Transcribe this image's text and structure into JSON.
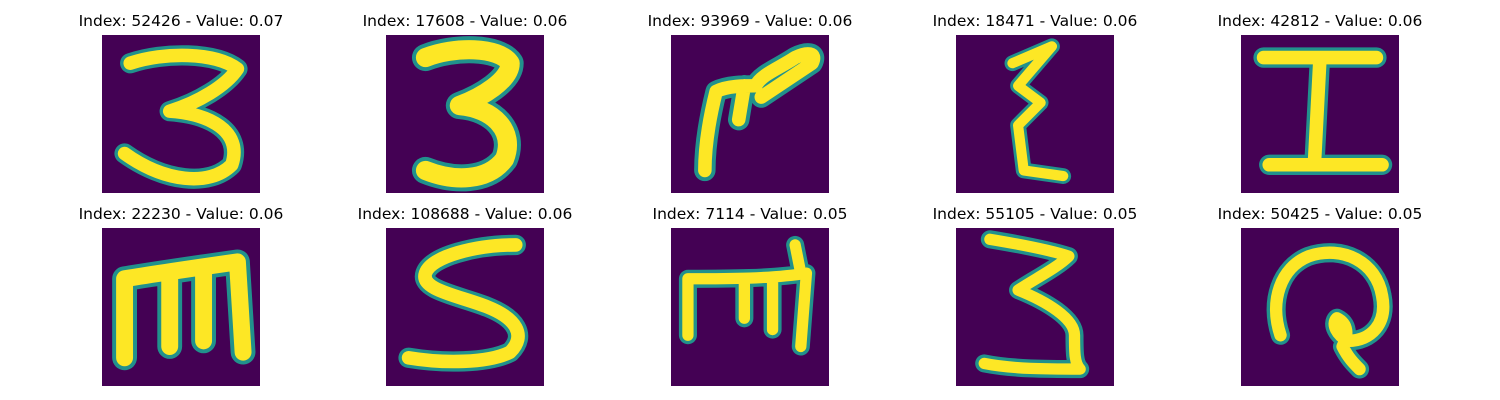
{
  "colors": {
    "background": "#440154",
    "stroke_outer": "#21918c",
    "stroke_mid": "#5ec962",
    "stroke_core": "#fde725"
  },
  "images": [
    {
      "title": "Index: 52426 - Value: 0.07",
      "glyph": "3"
    },
    {
      "title": "Index: 17608 - Value: 0.06",
      "glyph": "3"
    },
    {
      "title": "Index: 93969 - Value: 0.06",
      "glyph": "bird"
    },
    {
      "title": "Index: 18471 - Value: 0.06",
      "glyph": "zigzag"
    },
    {
      "title": "Index: 42812 - Value: 0.06",
      "glyph": "I"
    },
    {
      "title": "Index: 22230 - Value: 0.06",
      "glyph": "m"
    },
    {
      "title": "Index: 108688 - Value: 0.06",
      "glyph": "S"
    },
    {
      "title": "Index: 7114 - Value: 0.05",
      "glyph": "m"
    },
    {
      "title": "Index: 55105 - Value: 0.05",
      "glyph": "3"
    },
    {
      "title": "Index: 50425 - Value: 0.05",
      "glyph": "loop"
    }
  ]
}
